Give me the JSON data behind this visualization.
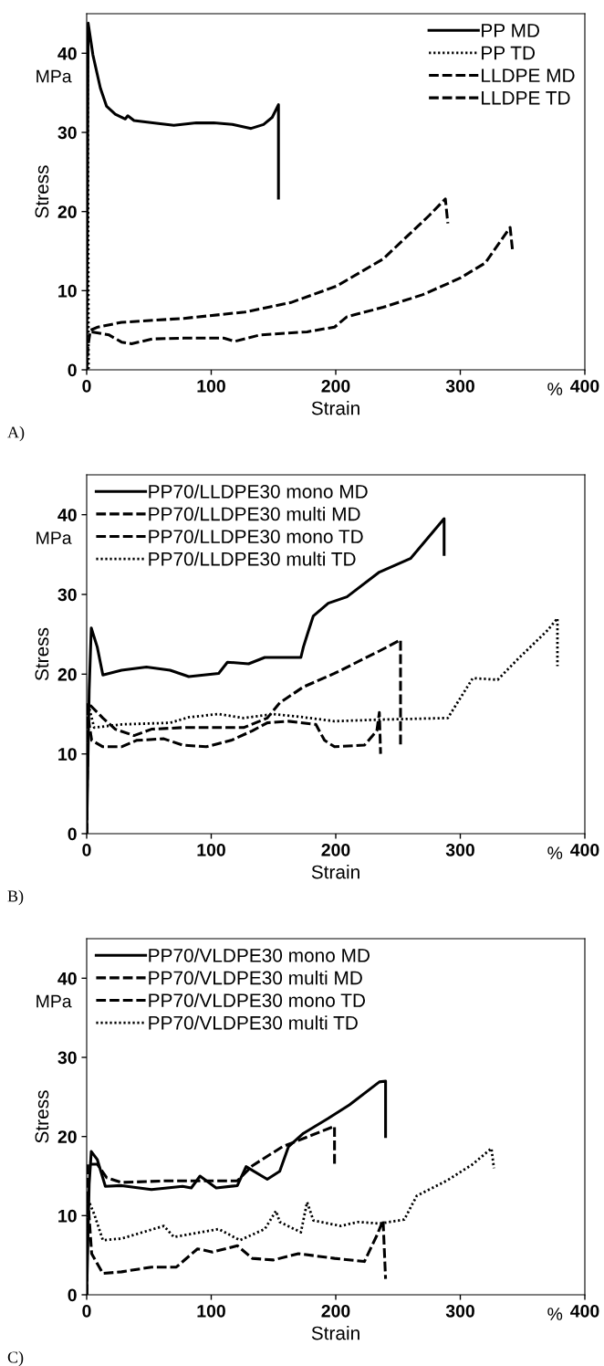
{
  "chart_data": [
    {
      "type": "line",
      "xlabel": "Strain",
      "ylabel": "Stress",
      "annotations": [
        "MPa",
        "%",
        "A)"
      ],
      "xlim": [
        0,
        400
      ],
      "ylim": [
        0,
        45
      ],
      "xticks": [
        0,
        100,
        200,
        300,
        400
      ],
      "yticks": [
        0,
        10,
        20,
        30,
        40
      ],
      "legend": "top right",
      "grid": false,
      "series": [
        {
          "name": "PP MD",
          "color": "#000000",
          "line_style": "solid",
          "x": [
            0,
            0.5,
            1.2,
            5,
            11,
            16,
            23,
            31,
            33,
            38,
            53,
            70,
            88,
            102,
            117,
            132,
            142,
            149,
            154,
            154
          ],
          "values": [
            0,
            20,
            43.8,
            39.8,
            35.6,
            33.3,
            32.3,
            31.7,
            32.1,
            31.5,
            31.2,
            30.9,
            31.2,
            31.2,
            31,
            30.5,
            31,
            31.9,
            33.5,
            21.7
          ]
        },
        {
          "name": "PP TD",
          "color": "#000000",
          "line_style": "dotted",
          "x": [
            0,
            0.8,
            1.5
          ],
          "values": [
            0,
            42,
            0
          ]
        },
        {
          "name": "LLDPE MD",
          "color": "#000000",
          "line_style": "dashed",
          "x": [
            0,
            1,
            3,
            9,
            28,
            78,
            127,
            164,
            201,
            238,
            275,
            288,
            290
          ],
          "values": [
            0,
            3,
            5,
            5.4,
            6,
            6.5,
            7.3,
            8.5,
            10.6,
            14,
            19.5,
            21.6,
            18.5
          ]
        },
        {
          "name": "LLDPE TD",
          "color": "#000000",
          "line_style": "dashed",
          "x": [
            4,
            18,
            28,
            36,
            53,
            78,
            110,
            119,
            139,
            177,
            199,
            209,
            238,
            270,
            300,
            320,
            340,
            342
          ],
          "values": [
            4.8,
            4.4,
            3.5,
            3.3,
            3.9,
            4,
            4,
            3.6,
            4.4,
            4.8,
            5.4,
            6.7,
            7.9,
            9.5,
            11.6,
            13.5,
            18,
            15
          ]
        }
      ]
    },
    {
      "type": "line",
      "xlabel": "Strain",
      "ylabel": "Stress",
      "annotations": [
        "MPa",
        "%",
        "B)"
      ],
      "xlim": [
        0,
        400
      ],
      "ylim": [
        0,
        45
      ],
      "xticks": [
        0,
        100,
        200,
        300,
        400
      ],
      "yticks": [
        0,
        10,
        20,
        30,
        40
      ],
      "legend": "top left",
      "grid": false,
      "series": [
        {
          "name": "PP70/LLDPE30 mono MD",
          "color": "#000000",
          "line_style": "solid",
          "x": [
            0,
            2,
            3.7,
            8.5,
            13,
            28,
            48,
            67,
            82,
            106,
            113,
            130,
            143,
            157,
            172,
            174,
            178,
            182,
            194,
            209,
            235,
            260,
            287,
            287
          ],
          "values": [
            0,
            18,
            25.8,
            23.4,
            19.9,
            20.5,
            20.9,
            20.5,
            19.7,
            20.1,
            21.5,
            21.3,
            22.1,
            22.1,
            22.1,
            23.4,
            25.4,
            27.3,
            28.9,
            29.7,
            32.8,
            34.5,
            39.5,
            35
          ]
        },
        {
          "name": "PP70/LLDPE30 multi MD",
          "color": "#000000",
          "line_style": "dashed",
          "x": [
            0,
            1,
            13,
            23,
            38,
            52,
            77,
            126,
            145,
            155,
            174,
            199,
            235,
            252,
            252
          ],
          "values": [
            0,
            16.4,
            14.5,
            13.1,
            12.3,
            13.1,
            13.3,
            13.3,
            14.5,
            16.4,
            18.4,
            20.1,
            22.9,
            24.3,
            11
          ]
        },
        {
          "name": "PP70/LLDPE30 mono TD",
          "color": "#000000",
          "line_style": "dashed",
          "x": [
            0,
            1,
            4,
            13,
            28,
            40,
            62,
            77,
            96,
            116,
            133,
            145,
            162,
            184,
            191,
            199,
            223,
            233,
            235,
            236
          ],
          "values": [
            0,
            14.8,
            11.7,
            10.9,
            10.9,
            11.7,
            11.9,
            11.1,
            10.9,
            11.7,
            12.9,
            13.9,
            14.1,
            13.7,
            11.7,
            10.9,
            11.1,
            12.9,
            15.2,
            10
          ]
        },
        {
          "name": "PP70/LLDPE30 multi TD",
          "color": "#000000",
          "line_style": "dotted",
          "x": [
            0,
            1,
            6,
            28,
            67,
            82,
            106,
            126,
            150,
            174,
            199,
            235,
            290,
            300,
            310,
            330,
            345,
            370,
            378,
            378
          ],
          "values": [
            0,
            16.4,
            13.3,
            13.7,
            13.9,
            14.6,
            15,
            14.5,
            15,
            14.6,
            14.1,
            14.3,
            14.5,
            17,
            19.5,
            19.3,
            21.7,
            25.5,
            27,
            21
          ]
        }
      ]
    },
    {
      "type": "line",
      "xlabel": "Strain",
      "ylabel": "Stress",
      "annotations": [
        "MPa",
        "%",
        "C)"
      ],
      "xlim": [
        0,
        400
      ],
      "ylim": [
        0,
        45
      ],
      "xticks": [
        0,
        100,
        200,
        300,
        400
      ],
      "yticks": [
        0,
        10,
        20,
        30,
        40
      ],
      "legend": "top left",
      "grid": false,
      "series": [
        {
          "name": "PP70/VLDPE30 mono MD",
          "color": "#000000",
          "line_style": "solid",
          "x": [
            0,
            2,
            3.7,
            8.5,
            15,
            28,
            52,
            77,
            84,
            91,
            104,
            121,
            128,
            145,
            155,
            162,
            174,
            194,
            211,
            235,
            240,
            240
          ],
          "values": [
            0,
            14,
            18.1,
            17.1,
            13.7,
            13.8,
            13.3,
            13.7,
            13.5,
            15,
            13.5,
            13.8,
            16.2,
            14.6,
            15.6,
            18.7,
            20.4,
            22.3,
            24,
            26.9,
            27,
            20
          ]
        },
        {
          "name": "PP70/VLDPE30 multi MD",
          "color": "#000000",
          "line_style": "dashed",
          "x": [
            0,
            1,
            8.5,
            16,
            28,
            65,
            121,
            133,
            157,
            199,
            199
          ],
          "values": [
            0,
            16.5,
            16.5,
            14.8,
            14.2,
            14.4,
            14.4,
            16.3,
            18.7,
            21.3,
            16.5
          ]
        },
        {
          "name": "PP70/VLDPE30 mono TD",
          "color": "#000000",
          "line_style": "dashed",
          "x": [
            0,
            1,
            4,
            13,
            28,
            52,
            72,
            89,
            101,
            121,
            133,
            150,
            170,
            199,
            223,
            233,
            238,
            240
          ],
          "values": [
            0,
            12.1,
            5.2,
            2.7,
            2.9,
            3.5,
            3.5,
            5.8,
            5.4,
            6.2,
            4.6,
            4.4,
            5.2,
            4.6,
            4.2,
            7.5,
            9.4,
            2
          ]
        },
        {
          "name": "PP70/VLDPE30 multi TD",
          "color": "#000000",
          "line_style": "dotted",
          "x": [
            0,
            1,
            6,
            13,
            28,
            62,
            70,
            106,
            123,
            143,
            152,
            155,
            172,
            177,
            182,
            204,
            218,
            235,
            255,
            265,
            290,
            310,
            325,
            327
          ],
          "values": [
            0,
            12.1,
            10.2,
            6.9,
            7.1,
            8.7,
            7.3,
            8.3,
            6.9,
            8.3,
            10.6,
            9.2,
            7.9,
            11.7,
            9.4,
            8.7,
            9.2,
            9,
            9.5,
            12.5,
            14.5,
            16.5,
            18.5,
            16
          ]
        }
      ]
    }
  ]
}
